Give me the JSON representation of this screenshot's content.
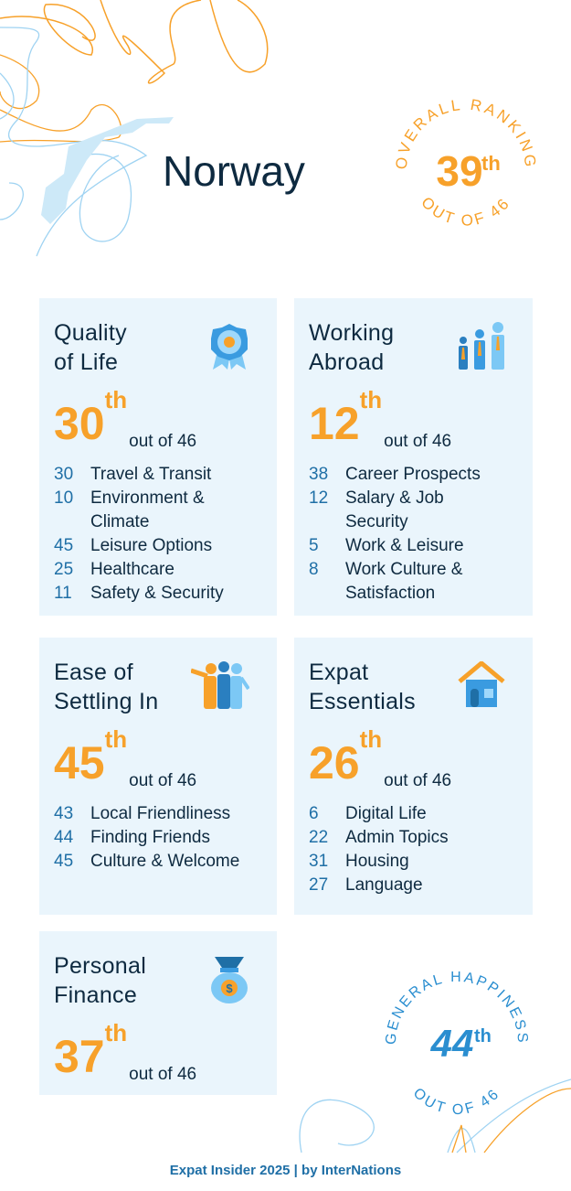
{
  "header": {
    "country": "Norway",
    "overall": {
      "label": "OVERALL RANKING",
      "rank": "39",
      "suffix": "th",
      "out_of": "OUT OF 46"
    }
  },
  "colors": {
    "orange": "#f7a12a",
    "navy": "#0e2a40",
    "blue": "#1f6fa6",
    "card": "#eaf5fc"
  },
  "cards": [
    {
      "title": "Quality\nof Life",
      "icon": "award-ribbon-icon",
      "rank": "30",
      "suffix": "th",
      "out_of": "out of 46",
      "items": [
        {
          "n": "30",
          "t": "Travel & Transit"
        },
        {
          "n": "10",
          "t": "Environment &\nClimate"
        },
        {
          "n": "45",
          "t": "Leisure Options"
        },
        {
          "n": "25",
          "t": "Healthcare"
        },
        {
          "n": "11",
          "t": "Safety & Security"
        }
      ]
    },
    {
      "title": "Working\nAbroad",
      "icon": "business-people-icon",
      "rank": "12",
      "suffix": "th",
      "out_of": "out of 46",
      "items": [
        {
          "n": "38",
          "t": "Career Prospects"
        },
        {
          "n": "12",
          "t": "Salary & Job\nSecurity"
        },
        {
          "n": "5",
          "t": "Work & Leisure"
        },
        {
          "n": "8",
          "t": "Work Culture &\nSatisfaction"
        }
      ]
    },
    {
      "title": "Ease of\nSettling In",
      "icon": "welcoming-people-icon",
      "rank": "45",
      "suffix": "th",
      "out_of": "out of 46",
      "items": [
        {
          "n": "43",
          "t": "Local Friendliness"
        },
        {
          "n": "44",
          "t": "Finding Friends"
        },
        {
          "n": "45",
          "t": "Culture & Welcome"
        }
      ]
    },
    {
      "title": "Expat\nEssentials",
      "icon": "house-icon",
      "rank": "26",
      "suffix": "th",
      "out_of": "out of 46",
      "items": [
        {
          "n": "6",
          "t": "Digital Life"
        },
        {
          "n": "22",
          "t": "Admin Topics"
        },
        {
          "n": "31",
          "t": "Housing"
        },
        {
          "n": "27",
          "t": "Language"
        }
      ]
    },
    {
      "title": "Personal\nFinance",
      "icon": "money-bag-icon",
      "rank": "37",
      "suffix": "th",
      "out_of": "out of 46",
      "items": []
    }
  ],
  "happiness": {
    "label": "GENERAL HAPPINESS",
    "rank": "44",
    "suffix": "th",
    "out_of": "OUT OF 46"
  },
  "footer": "Expat Insider 2025  |  by InterNations"
}
